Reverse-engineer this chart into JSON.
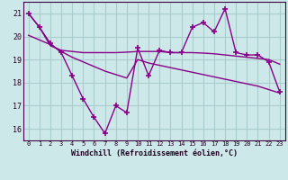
{
  "main_x": [
    0,
    1,
    2,
    3,
    4,
    5,
    6,
    7,
    8,
    9,
    10,
    11,
    12,
    13,
    14,
    15,
    16,
    17,
    18,
    19,
    20,
    21,
    22,
    23
  ],
  "main_y": [
    21.0,
    20.4,
    19.7,
    19.3,
    18.3,
    17.3,
    16.5,
    15.8,
    17.0,
    16.7,
    19.5,
    18.3,
    19.4,
    19.3,
    19.3,
    20.4,
    20.6,
    20.2,
    21.2,
    19.3,
    19.2,
    19.2,
    18.9,
    17.6
  ],
  "upper_x": [
    0,
    1,
    2,
    3,
    4,
    5,
    6,
    7,
    8,
    9,
    10,
    11,
    12,
    13,
    14,
    15,
    16,
    17,
    18,
    19,
    20,
    21,
    22,
    23
  ],
  "upper_y": [
    21.0,
    20.4,
    19.6,
    19.4,
    19.35,
    19.3,
    19.3,
    19.3,
    19.3,
    19.32,
    19.35,
    19.35,
    19.35,
    19.3,
    19.3,
    19.3,
    19.28,
    19.25,
    19.2,
    19.15,
    19.1,
    19.05,
    19.0,
    18.8
  ],
  "lower_x": [
    0,
    1,
    2,
    3,
    4,
    5,
    6,
    7,
    8,
    9,
    10,
    11,
    12,
    13,
    14,
    15,
    16,
    17,
    18,
    19,
    20,
    21,
    22,
    23
  ],
  "lower_y": [
    20.05,
    19.85,
    19.65,
    19.35,
    19.1,
    18.9,
    18.7,
    18.5,
    18.35,
    18.2,
    19.0,
    18.85,
    18.75,
    18.65,
    18.55,
    18.45,
    18.35,
    18.25,
    18.15,
    18.05,
    17.95,
    17.85,
    17.7,
    17.55
  ],
  "bg_color": "#cce8e8",
  "line_color": "#880088",
  "grid_color": "#aacccc",
  "xlabel": "Windchill (Refroidissement éolien,°C)",
  "xlim": [
    -0.5,
    23.5
  ],
  "ylim": [
    15.5,
    21.5
  ],
  "yticks": [
    16,
    17,
    18,
    19,
    20,
    21
  ],
  "xticks": [
    0,
    1,
    2,
    3,
    4,
    5,
    6,
    7,
    8,
    9,
    10,
    11,
    12,
    13,
    14,
    15,
    16,
    17,
    18,
    19,
    20,
    21,
    22,
    23
  ]
}
